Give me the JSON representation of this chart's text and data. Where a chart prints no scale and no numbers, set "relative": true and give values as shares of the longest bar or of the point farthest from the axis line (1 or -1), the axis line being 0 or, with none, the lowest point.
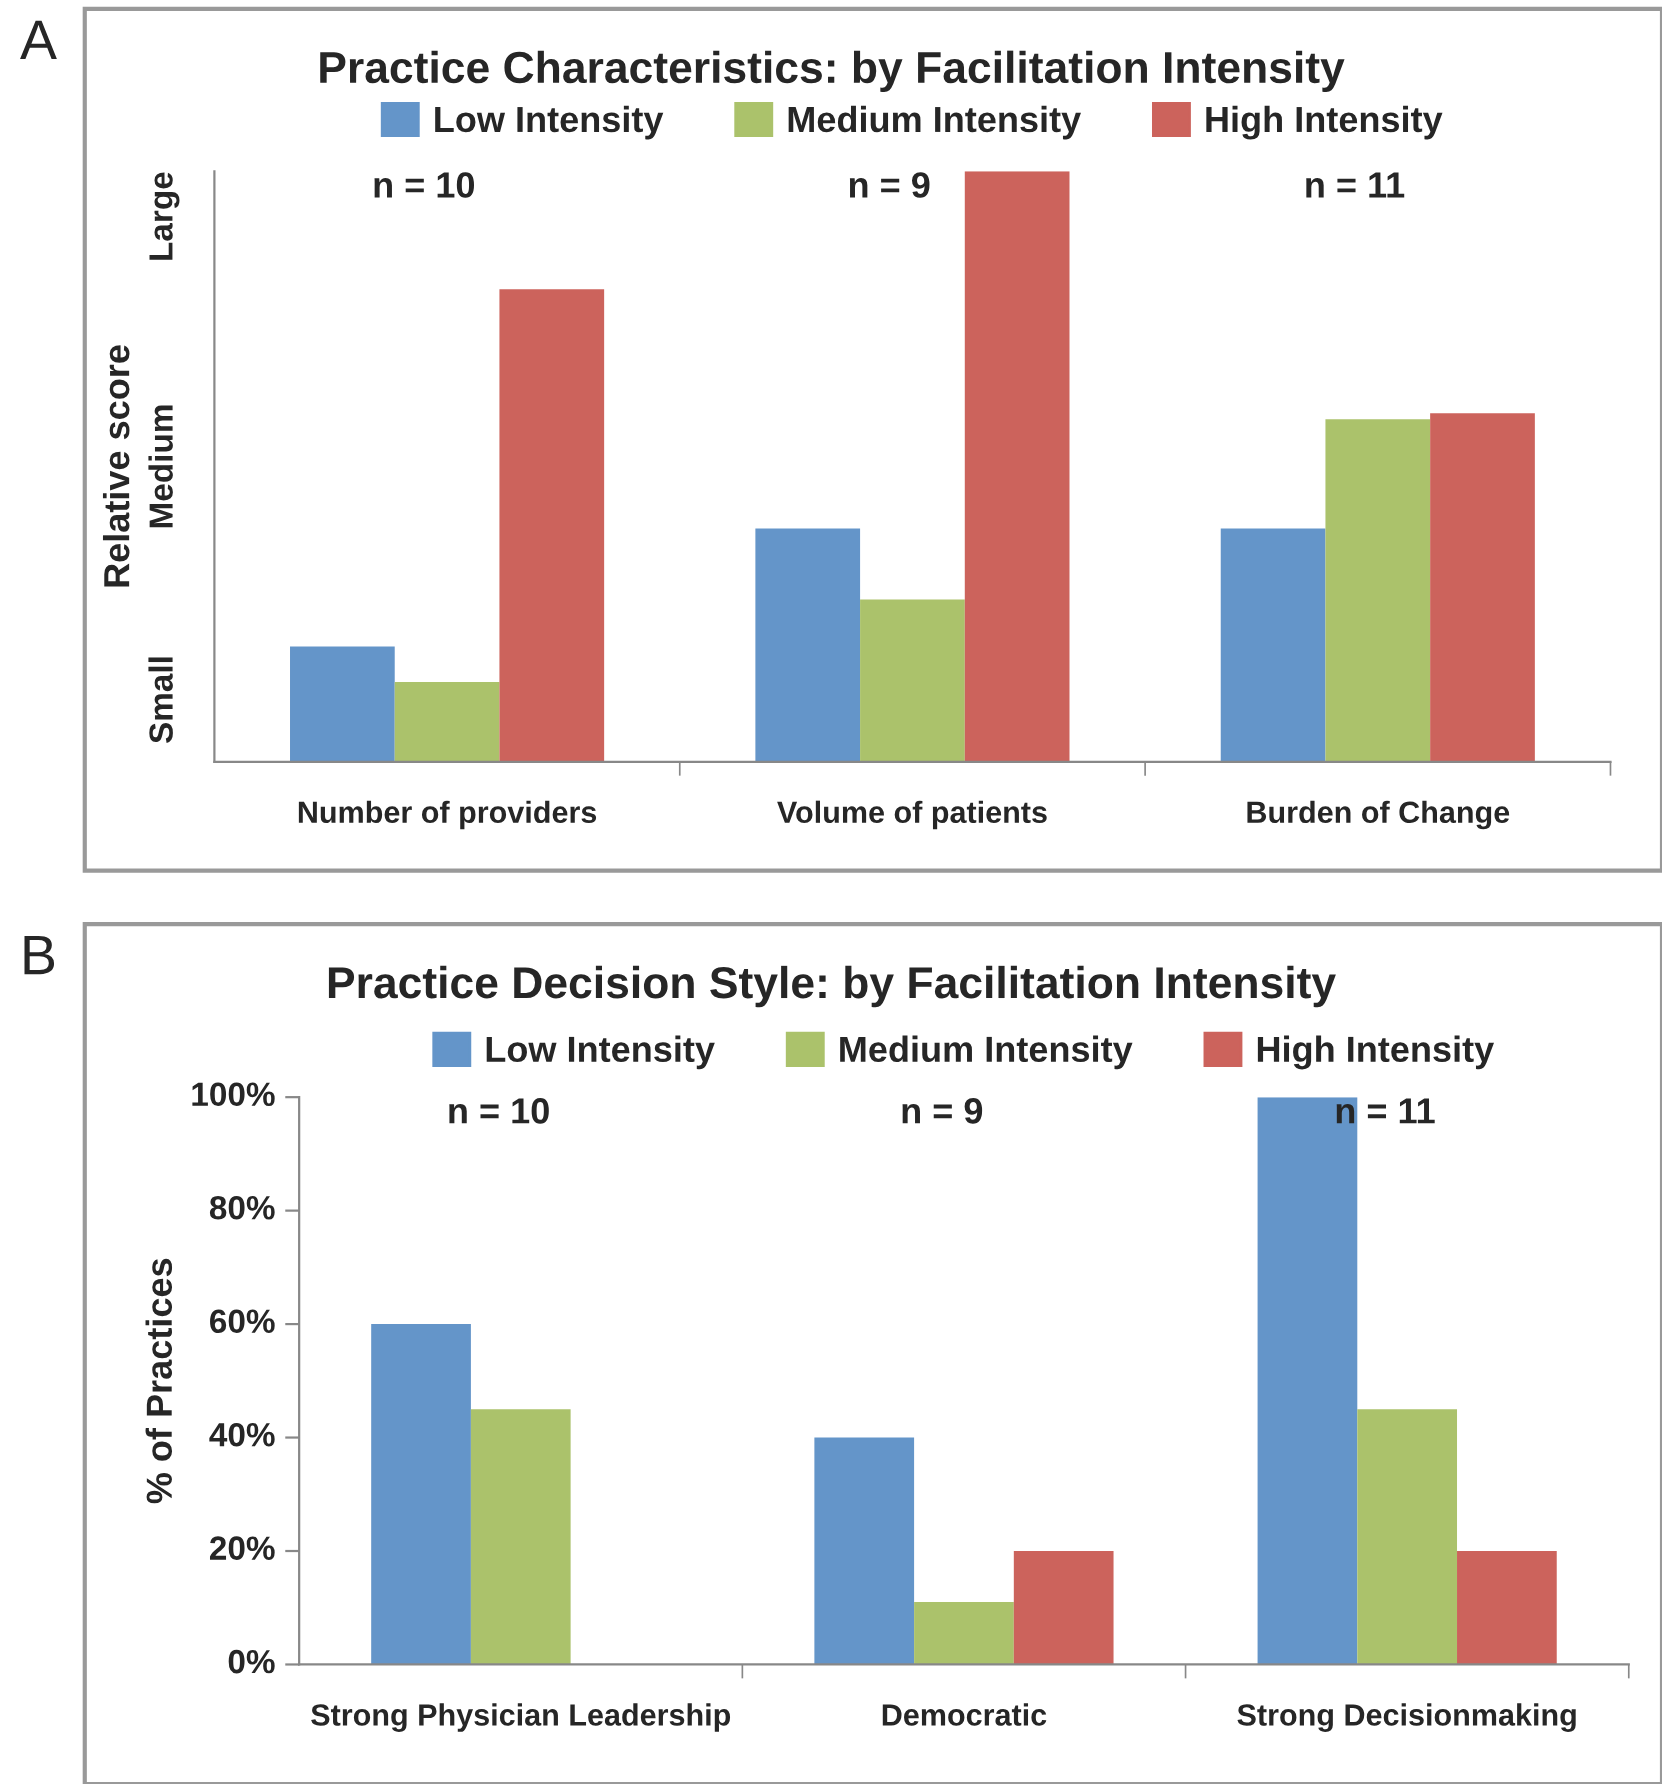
{
  "chart_data": [
    {
      "type": "bar",
      "title": "Practice Characteristics: by Facilitation Intensity",
      "ylabel": "Relative score",
      "categories": [
        "Number of providers",
        "Volume of patients",
        "Burden of Change"
      ],
      "series": [
        {
          "name": "Low Intensity",
          "color": "#6495c9",
          "values": [
            0.195,
            0.395,
            0.395
          ]
        },
        {
          "name": "Medium Intensity",
          "color": "#abc26b",
          "values": [
            0.135,
            0.275,
            0.58
          ]
        },
        {
          "name": "High Intensity",
          "color": "#cc635c",
          "values": [
            0.8,
            1,
            0.59
          ]
        }
      ],
      "relative": true,
      "annotations": [
        "A",
        "n = 10",
        "n = 9",
        "n = 11",
        "Small",
        "Medium",
        "Large"
      ],
      "legend": "top",
      "grid": false
    },
    {
      "type": "bar",
      "title": "Practice Decision Style: by Facilitation Intensity",
      "ylabel": "% of Practices",
      "categories": [
        "Strong Physician Leadership",
        "Democratic",
        "Strong Decisionmaking"
      ],
      "series": [
        {
          "name": "Low Intensity",
          "color": "#6495c9",
          "values": [
            60,
            40,
            100
          ]
        },
        {
          "name": "Medium Intensity",
          "color": "#abc26b",
          "values": [
            45,
            11,
            45
          ]
        },
        {
          "name": "High Intensity",
          "color": "#cc635c",
          "values": [
            0,
            20,
            20
          ]
        }
      ],
      "ylim": [
        0,
        100
      ],
      "yticks": [
        {
          "value": 0,
          "label": "0%"
        },
        {
          "value": 20,
          "label": "20%"
        },
        {
          "value": 40,
          "label": "40%"
        },
        {
          "value": 60,
          "label": "60%"
        },
        {
          "value": 80,
          "label": "80%"
        },
        {
          "value": 100,
          "label": "100%"
        }
      ],
      "annotations": [
        "B",
        "n = 10",
        "n = 9",
        "n = 11"
      ],
      "legend": "top",
      "grid": false
    }
  ]
}
